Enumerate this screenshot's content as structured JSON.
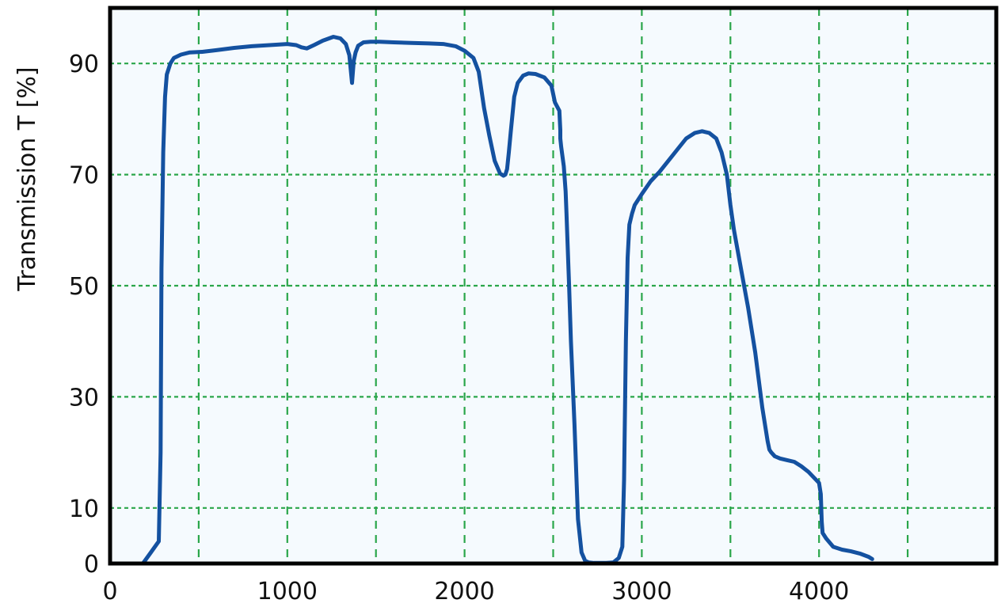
{
  "chart_data": {
    "type": "line",
    "title": "",
    "xlabel": "",
    "ylabel": "Transmission T [%]",
    "xlim": [
      0,
      5000
    ],
    "ylim": [
      0,
      100
    ],
    "x_ticks": [
      0,
      1000,
      2000,
      3000,
      4000
    ],
    "x_tick_labels": [
      "0",
      "1000",
      "2000",
      "3000",
      "4000"
    ],
    "x_gridlines": [
      500,
      1000,
      1500,
      2000,
      2500,
      3000,
      3500,
      4000,
      4500
    ],
    "y_ticks": [
      0,
      10,
      30,
      50,
      70,
      90
    ],
    "y_tick_labels": [
      "0",
      "10",
      "30",
      "50",
      "70",
      "90"
    ],
    "y_gridlines": [
      10,
      30,
      50,
      70,
      90
    ],
    "grid": true,
    "colors": {
      "line": "#1451a0",
      "grid": "#2aa64a",
      "plot_background": "#f5fafe",
      "frame": "#000000"
    },
    "series": [
      {
        "x": [
          185,
          230,
          275,
          285,
          290,
          300,
          310,
          320,
          340,
          360,
          400,
          450,
          520,
          600,
          700,
          800,
          900,
          1000,
          1050,
          1080,
          1110,
          1150,
          1200,
          1260,
          1300,
          1330,
          1350,
          1365,
          1375,
          1385,
          1400,
          1430,
          1470,
          1520,
          1600,
          1700,
          1800,
          1880,
          1950,
          2000,
          2050,
          2080,
          2110,
          2140,
          2170,
          2200,
          2220,
          2230,
          2240,
          2250,
          2260,
          2280,
          2300,
          2330,
          2360,
          2400,
          2450,
          2490,
          2510,
          2535,
          2540,
          2540,
          2545,
          2560,
          2570,
          2575,
          2590,
          2600,
          2620,
          2640,
          2660,
          2680,
          2700,
          2730,
          2760,
          2800,
          2840,
          2870,
          2890,
          2900,
          2910,
          2920,
          2930,
          2945,
          2960,
          3000,
          3050,
          3100,
          3150,
          3200,
          3250,
          3300,
          3340,
          3380,
          3420,
          3450,
          3480,
          3500,
          3520,
          3560,
          3600,
          3640,
          3680,
          3710,
          3720,
          3730,
          3750,
          3780,
          3820,
          3860,
          3900,
          3940,
          3970,
          4000,
          4010,
          4015,
          4020,
          4040,
          4080,
          4130,
          4180,
          4230,
          4280,
          4300
        ],
        "y": [
          0,
          2,
          4,
          20,
          53,
          74,
          84,
          88,
          90,
          91,
          91.6,
          92,
          92.1,
          92.4,
          92.8,
          93.1,
          93.3,
          93.5,
          93.3,
          92.9,
          92.7,
          93.3,
          94.1,
          94.8,
          94.5,
          93.5,
          91.5,
          86.5,
          90.5,
          92,
          93.2,
          93.8,
          93.9,
          93.9,
          93.8,
          93.7,
          93.6,
          93.5,
          93.1,
          92.3,
          91,
          88.5,
          82,
          77,
          72.5,
          70.2,
          69.8,
          70,
          71,
          74,
          77.5,
          84,
          86.5,
          87.8,
          88.2,
          88.1,
          87.5,
          86,
          83,
          81.5,
          78,
          76.5,
          75,
          71.5,
          67,
          63,
          50,
          40,
          25,
          8,
          2,
          0.5,
          0.2,
          0.1,
          0.1,
          0.1,
          0.2,
          1,
          3,
          15,
          40,
          55,
          61,
          63,
          64.5,
          66.5,
          68.8,
          70.5,
          72.5,
          74.5,
          76.5,
          77.5,
          77.8,
          77.5,
          76.5,
          74,
          70,
          64.5,
          60,
          53,
          46,
          38,
          28,
          22,
          20.5,
          20,
          19.3,
          18.9,
          18.6,
          18.3,
          17.5,
          16.5,
          15.5,
          14.5,
          12.5,
          7.5,
          5.5,
          4.5,
          3,
          2.5,
          2.2,
          1.8,
          1.2,
          0.8
        ]
      }
    ]
  }
}
